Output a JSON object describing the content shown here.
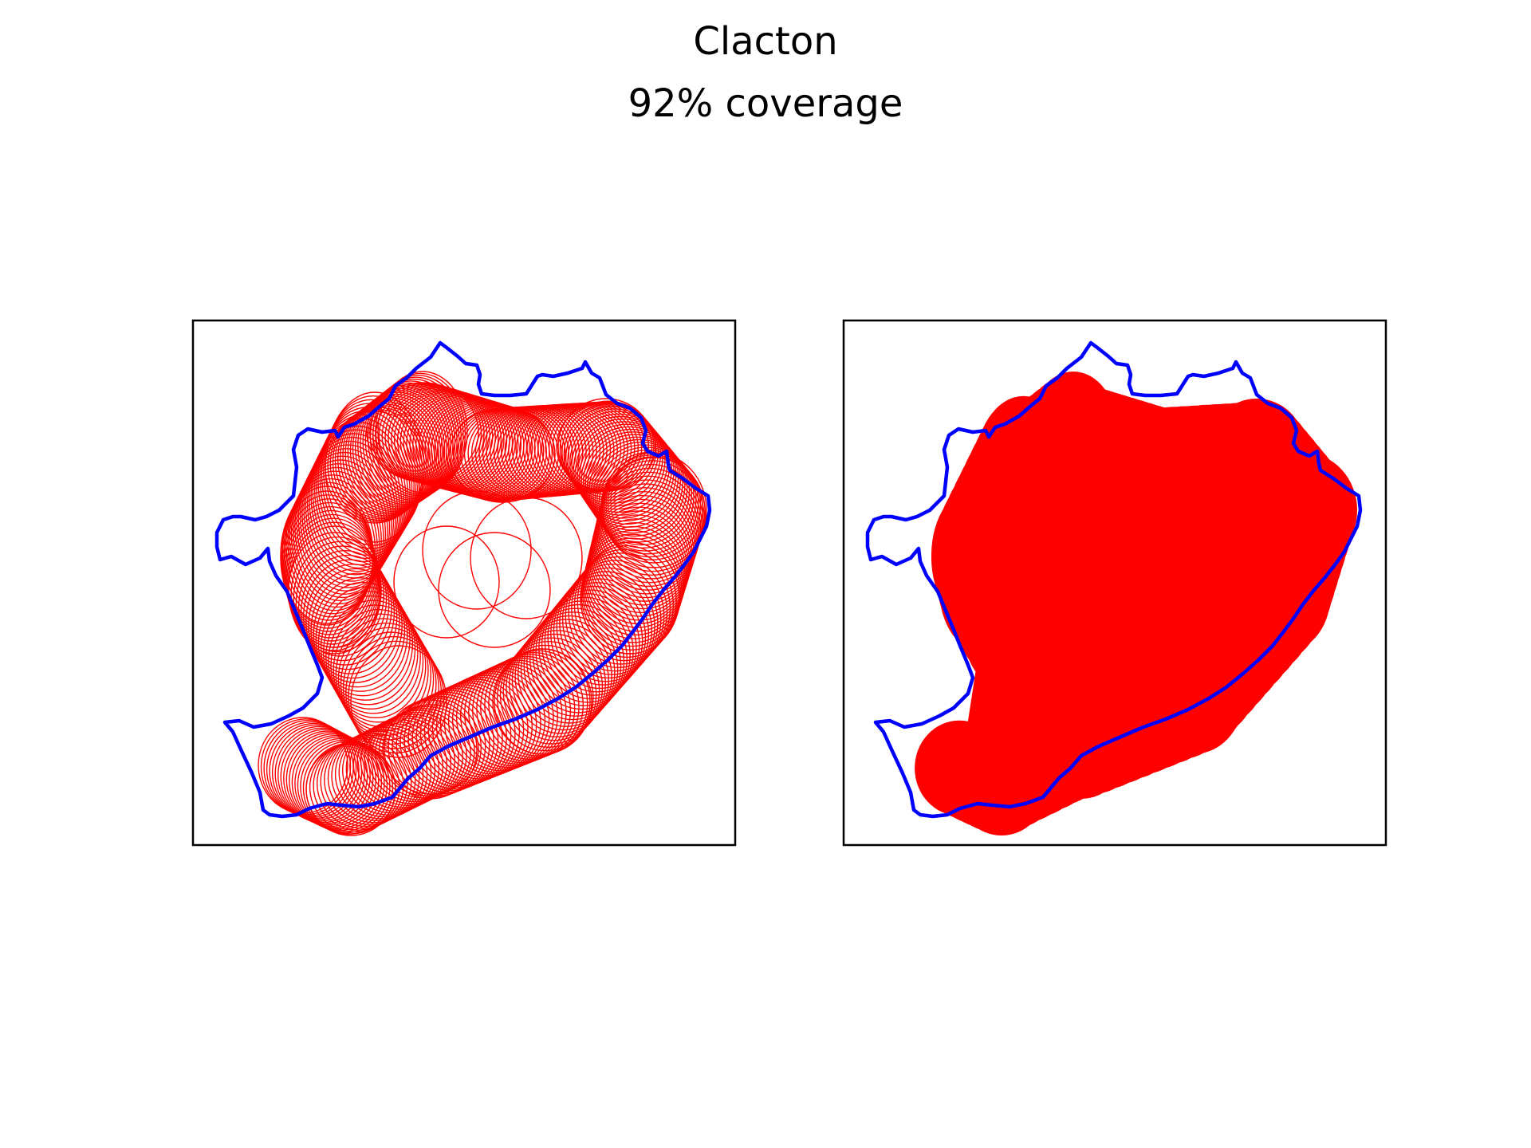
{
  "figure": {
    "title": "Clacton",
    "subtitle": "92% coverage"
  },
  "colors": {
    "boundary": "#0000ff",
    "circles": "#ff0000",
    "frame": "#000000",
    "background": "#ffffff"
  },
  "panels": [
    {
      "name": "circle-outlines",
      "style": "outline"
    },
    {
      "name": "circle-union",
      "style": "filled"
    }
  ],
  "coverage_percent": 92
}
